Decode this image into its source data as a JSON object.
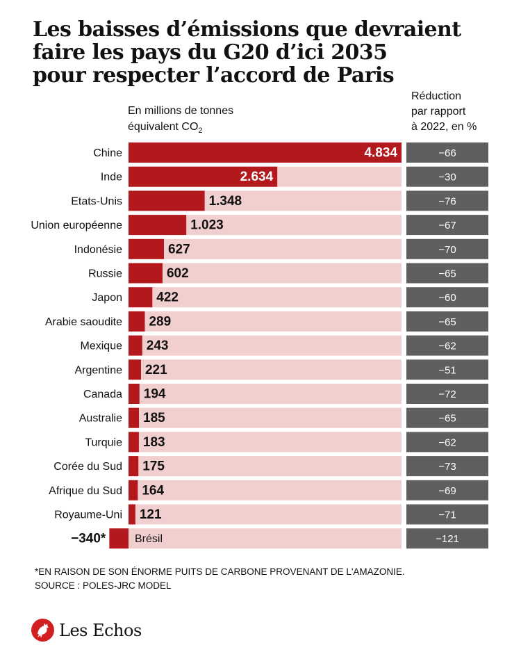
{
  "title_lines": [
    "Les baisses d’émissions que devraient",
    "faire les pays du G20 d’ici 2035",
    "pour respecter l’accord de Paris"
  ],
  "unit_label": {
    "line1": "En millions de tonnes",
    "line2": "équivalent CO",
    "sub": "2"
  },
  "pct_header_lines": [
    "Réduction",
    "par rapport",
    "à 2022, en %"
  ],
  "colors": {
    "bar": "#b3191c",
    "bar_background": "#f2cfcf",
    "pct_box": "#5f5f5f",
    "text": "#111111"
  },
  "chart_data": {
    "type": "bar",
    "orientation": "horizontal",
    "title": "Les baisses d’émissions que devraient faire les pays du G20 d’ici 2035 pour respecter l’accord de Paris",
    "xlabel": "En millions de tonnes équivalent CO2",
    "xlim": [
      0,
      4834
    ],
    "categories": [
      "Chine",
      "Inde",
      "Etats-Unis",
      "Union européenne",
      "Indonésie",
      "Russie",
      "Japon",
      "Arabie saoudite",
      "Mexique",
      "Argentine",
      "Canada",
      "Australie",
      "Turquie",
      "Corée du Sud",
      "Afrique du Sud",
      "Royaume-Uni",
      "Brésil"
    ],
    "values": [
      4834,
      2634,
      1348,
      1023,
      627,
      602,
      422,
      289,
      243,
      221,
      194,
      185,
      183,
      175,
      164,
      121,
      -340
    ],
    "value_labels": [
      "4.834",
      "2.634",
      "1.348",
      "1.023",
      "627",
      "602",
      "422",
      "289",
      "243",
      "221",
      "194",
      "185",
      "183",
      "175",
      "164",
      "121",
      "−340*"
    ],
    "pct_series_name": "Réduction par rapport à 2022, en %",
    "pct_values": [
      -66,
      -30,
      -76,
      -67,
      -70,
      -65,
      -60,
      -65,
      -62,
      -51,
      -72,
      -65,
      -62,
      -73,
      -69,
      -71,
      -121
    ],
    "pct_labels": [
      "−66",
      "−30",
      "−76",
      "−67",
      "−70",
      "−65",
      "−60",
      "−65",
      "−62",
      "−51",
      "−72",
      "−65",
      "−62",
      "−73",
      "−69",
      "−71",
      "−121"
    ],
    "grid": false,
    "legend": "none"
  },
  "footnote": "*EN RAISON DE SON ÉNORME PUITS DE CARBONE PROVENANT DE L'AMAZONIE.",
  "source": "SOURCE : POLES-JRC MODEL",
  "logo": {
    "text": "Les Echos",
    "icon": "les-echos-rooster-icon"
  }
}
